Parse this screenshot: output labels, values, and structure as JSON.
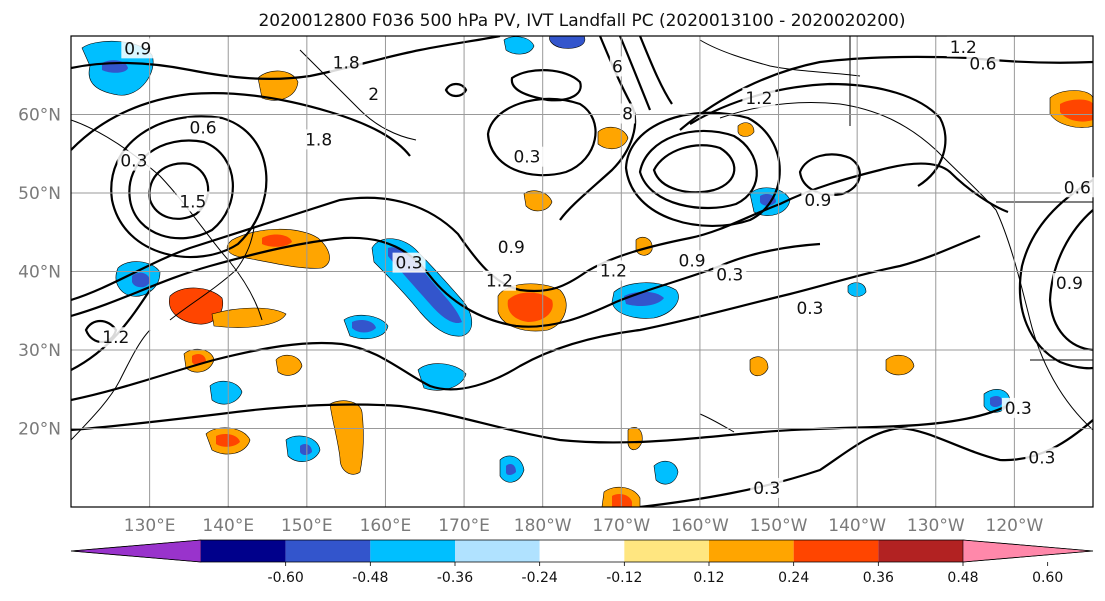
{
  "title": "2020012800 F036 500 hPa PV, IVT Landfall PC (2020013100 - 2020020200)",
  "map": {
    "lon_min": 120,
    "lon_max": 250,
    "lat_min": 10,
    "lat_max": 70,
    "grid": true,
    "x_ticks": [
      {
        "label": "130°E",
        "lon": 130
      },
      {
        "label": "140°E",
        "lon": 140
      },
      {
        "label": "150°E",
        "lon": 150
      },
      {
        "label": "160°E",
        "lon": 160
      },
      {
        "label": "170°E",
        "lon": 170
      },
      {
        "label": "180°W",
        "lon": 180
      },
      {
        "label": "170°W",
        "lon": 190
      },
      {
        "label": "160°W",
        "lon": 200
      },
      {
        "label": "150°W",
        "lon": 210
      },
      {
        "label": "140°W",
        "lon": 220
      },
      {
        "label": "130°W",
        "lon": 230
      },
      {
        "label": "120°W",
        "lon": 240
      }
    ],
    "y_ticks": [
      {
        "label": "60°N",
        "lat": 60
      },
      {
        "label": "50°N",
        "lat": 50
      },
      {
        "label": "40°N",
        "lat": 40
      },
      {
        "label": "30°N",
        "lat": 30
      },
      {
        "label": "20°N",
        "lat": 20
      }
    ]
  },
  "colorbar": {
    "levels": [
      "-0.60",
      "-0.48",
      "-0.36",
      "-0.24",
      "-0.12",
      "0.12",
      "0.24",
      "0.36",
      "0.48",
      "0.60"
    ],
    "colors": [
      "#9933cc",
      "#00008b",
      "#3355cc",
      "#00bfff",
      "#b0e2ff",
      "#ffffff",
      "#ffe680",
      "#ffa500",
      "#ff4500",
      "#b22222",
      "#ff88aa"
    ],
    "extend": "both"
  },
  "contour_labels": [
    {
      "text": "0.9",
      "lon": 128.5,
      "lat": 68.3
    },
    {
      "text": "1.8",
      "lon": 155,
      "lat": 66.5
    },
    {
      "text": "2",
      "lon": 158.5,
      "lat": 62.5
    },
    {
      "text": "1.8",
      "lon": 151.5,
      "lat": 56.7
    },
    {
      "text": "0.6",
      "lon": 136.8,
      "lat": 58.2
    },
    {
      "text": "0.3",
      "lon": 128,
      "lat": 54
    },
    {
      "text": "1.5",
      "lon": 135.5,
      "lat": 48.8
    },
    {
      "text": "0.3",
      "lon": 163,
      "lat": 41
    },
    {
      "text": "1.2",
      "lon": 125.7,
      "lat": 31.5
    },
    {
      "text": "0.3",
      "lon": 178,
      "lat": 54.5
    },
    {
      "text": "0.9",
      "lon": 176,
      "lat": 43
    },
    {
      "text": "1.2",
      "lon": 174.5,
      "lat": 38.7
    },
    {
      "text": "1.2",
      "lon": 189,
      "lat": 40
    },
    {
      "text": "0.9",
      "lon": 199,
      "lat": 41.3
    },
    {
      "text": "0.3",
      "lon": 203.8,
      "lat": 39.5
    },
    {
      "text": "0.3",
      "lon": 214,
      "lat": 35.2
    },
    {
      "text": "0.9",
      "lon": 215,
      "lat": 49
    },
    {
      "text": "1.2",
      "lon": 207.5,
      "lat": 62
    },
    {
      "text": "1.2",
      "lon": 233.5,
      "lat": 68.5
    },
    {
      "text": "0.6",
      "lon": 236,
      "lat": 66.4
    },
    {
      "text": "0.6",
      "lon": 248,
      "lat": 50.6
    },
    {
      "text": "0.9",
      "lon": 247,
      "lat": 38.4
    },
    {
      "text": "0.3",
      "lon": 240.5,
      "lat": 22.5
    },
    {
      "text": "0.3",
      "lon": 243.5,
      "lat": 16.2
    },
    {
      "text": "0.3",
      "lon": 208.5,
      "lat": 12.3
    },
    {
      "text": "6",
      "lon": 189.5,
      "lat": 66
    },
    {
      "text": "8",
      "lon": 190.8,
      "lat": 60
    }
  ]
}
